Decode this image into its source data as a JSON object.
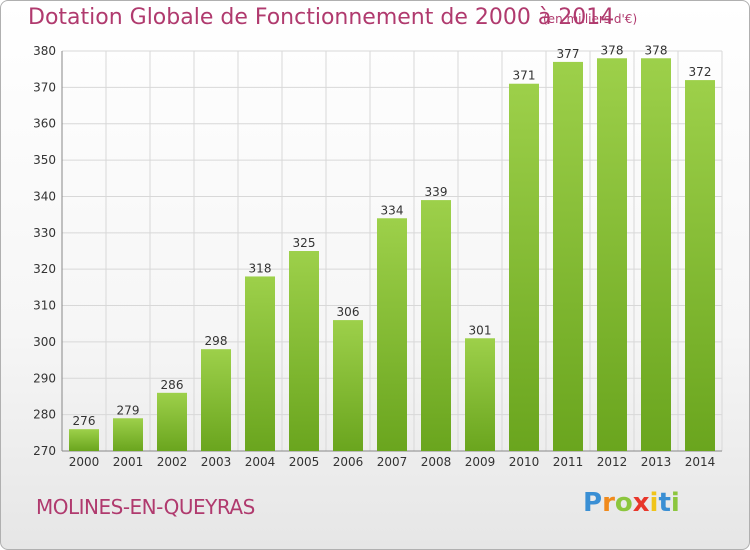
{
  "chart_data": {
    "type": "bar",
    "title": "Dotation Globale de Fonctionnement de 2000 à 2014",
    "unit": "(en milliers d'€)",
    "categories": [
      "2000",
      "2001",
      "2002",
      "2003",
      "2004",
      "2005",
      "2006",
      "2007",
      "2008",
      "2009",
      "2010",
      "2011",
      "2012",
      "2013",
      "2014"
    ],
    "values": [
      276,
      279,
      286,
      298,
      318,
      325,
      306,
      334,
      339,
      301,
      371,
      377,
      378,
      378,
      372
    ],
    "ylim": [
      270,
      380
    ],
    "yticks": [
      270,
      280,
      290,
      300,
      310,
      320,
      330,
      340,
      350,
      360,
      370,
      380
    ],
    "grid": true,
    "bar_color_top": "#9dd04a",
    "bar_color_bottom": "#6aa51e"
  },
  "commune": "MOLINES-EN-QUEYRAS",
  "logo": {
    "letters": [
      "P",
      "r",
      "o",
      "x",
      "i",
      "t",
      "i"
    ],
    "colors": [
      "#3a8fd4",
      "#f08a1c",
      "#8cc63e",
      "#e8362a",
      "#f0c419",
      "#3a8fd4",
      "#8cc63e"
    ]
  }
}
